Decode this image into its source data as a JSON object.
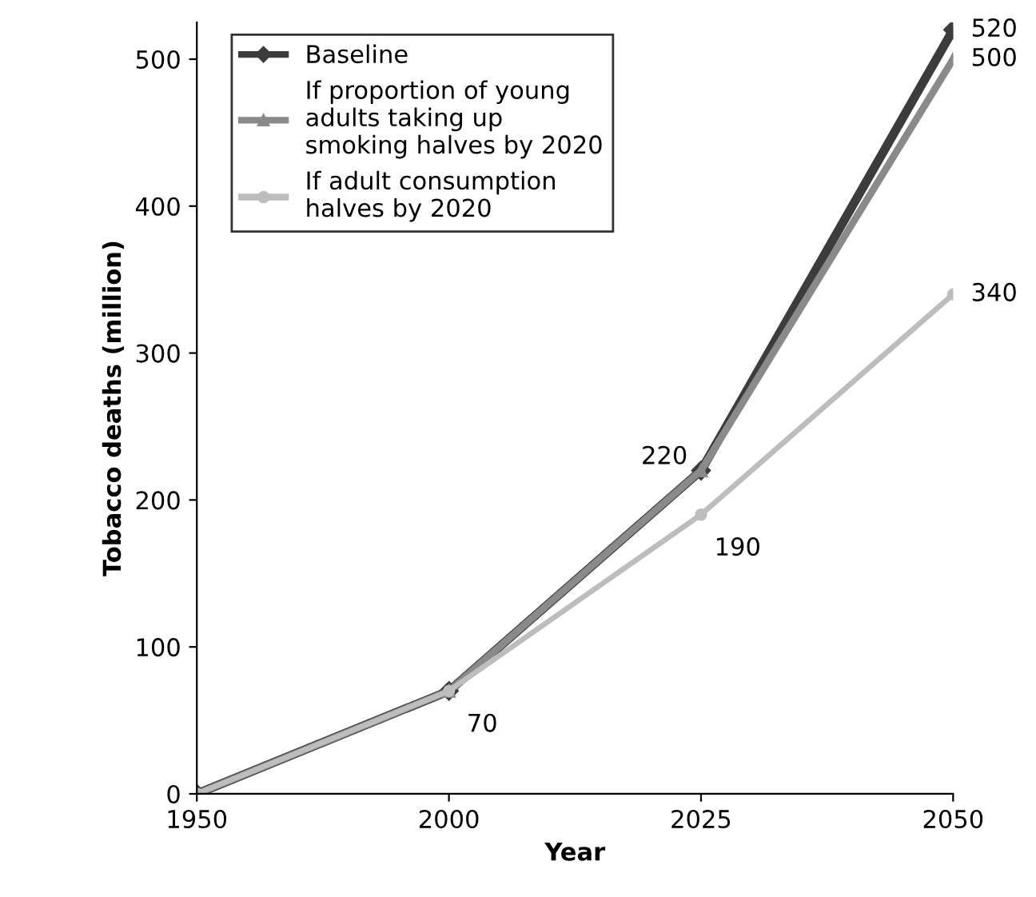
{
  "chart_data": {
    "type": "line",
    "xlabel": "Year",
    "ylabel": "Tobacco deaths (million)",
    "categories": [
      "1950",
      "2000",
      "2025",
      "2050"
    ],
    "ylim": [
      0,
      525
    ],
    "yticks": [
      0,
      100,
      200,
      300,
      400,
      500
    ],
    "grid": false,
    "legend": "top left",
    "series": [
      {
        "name": "Baseline",
        "color": "#3c3c3c",
        "marker": "diamond",
        "values": [
          0,
          70,
          220,
          520
        ],
        "value_labels": [
          null,
          "70",
          "220",
          "520"
        ]
      },
      {
        "name": "If proportion of young adults taking up smoking halves by 2020",
        "color": "#8a8a8a",
        "marker": "triangle",
        "values": [
          0,
          70,
          220,
          500
        ],
        "value_labels": [
          null,
          null,
          null,
          "500"
        ]
      },
      {
        "name": "If adult consumption halves by 2020",
        "color": "#bdbdbd",
        "marker": "circle",
        "values": [
          0,
          70,
          190,
          340
        ],
        "value_labels": [
          null,
          null,
          "190",
          "340"
        ]
      }
    ]
  }
}
